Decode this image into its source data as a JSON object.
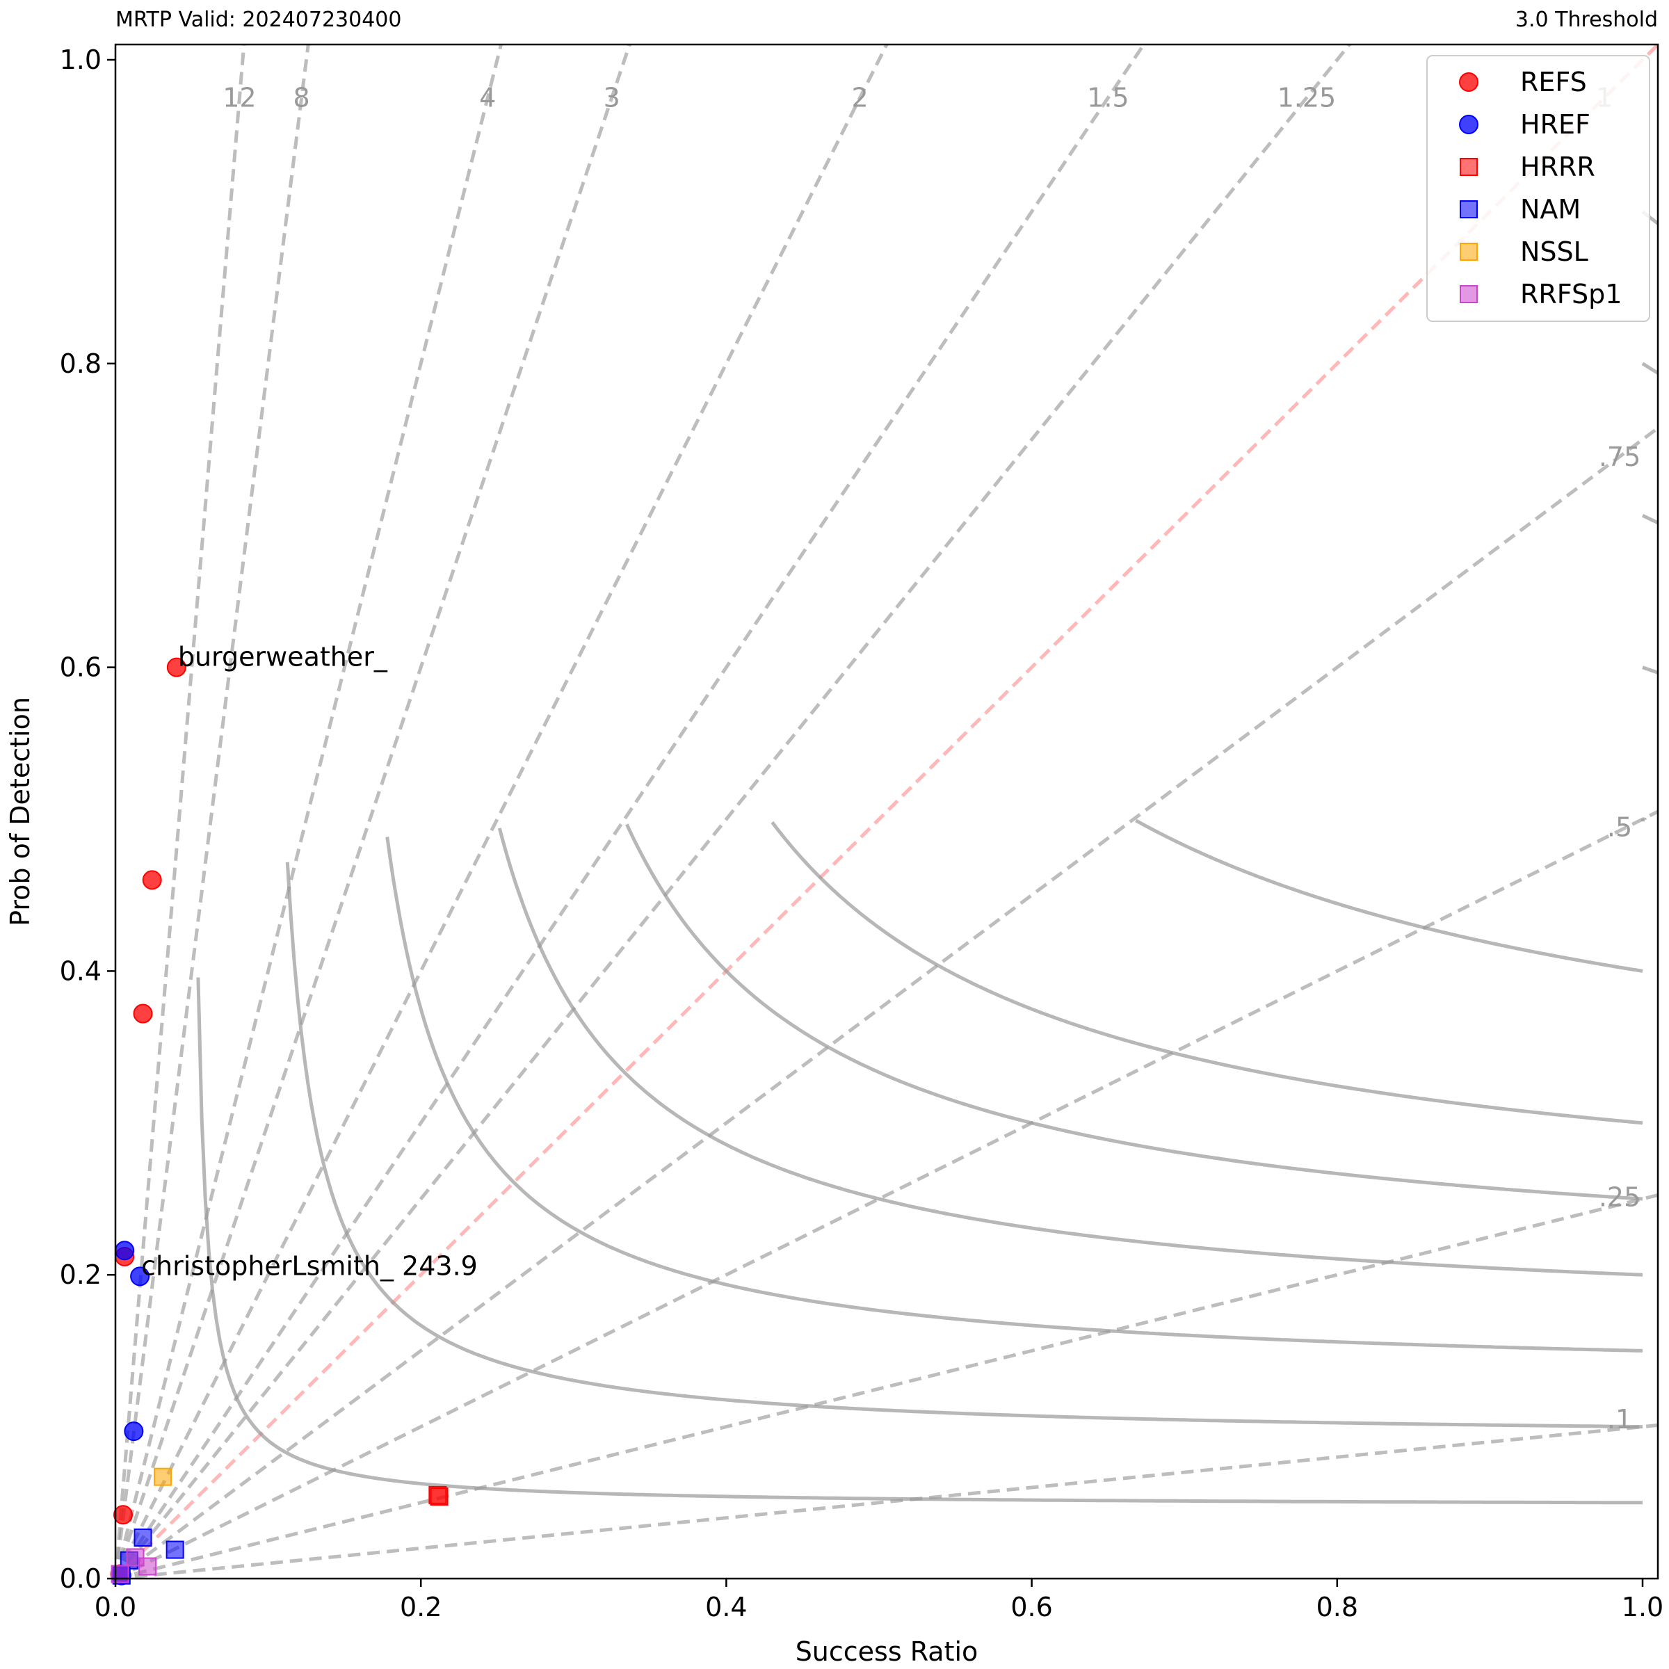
{
  "header": {
    "left_title": "MRTP Valid: 202407230400",
    "right_title": "3.0 Threshold"
  },
  "chart_data": {
    "type": "scatter",
    "xlabel": "Success Ratio",
    "ylabel": "Prob of Detection",
    "xlim": [
      0,
      1.01
    ],
    "ylim": [
      0,
      1.01
    ],
    "x_ticks": [
      "0.0",
      "0.2",
      "0.4",
      "0.6",
      "0.8",
      "1.0"
    ],
    "y_ticks": [
      "0.0",
      "0.2",
      "0.4",
      "0.6",
      "0.8",
      "1.0"
    ],
    "grid": false,
    "legend_position": "top-right",
    "csi_contours": [
      0.05,
      0.1,
      0.15,
      0.2,
      0.25,
      0.3,
      0.4,
      0.5,
      0.6,
      0.7,
      0.8,
      0.9
    ],
    "bias_lines": [
      {
        "bias": 12,
        "label": "12"
      },
      {
        "bias": 8,
        "label": "8"
      },
      {
        "bias": 4,
        "label": "4"
      },
      {
        "bias": 3,
        "label": "3"
      },
      {
        "bias": 2,
        "label": "2"
      },
      {
        "bias": 1.5,
        "label": "1.5"
      },
      {
        "bias": 1.25,
        "label": "1.25"
      },
      {
        "bias": 1,
        "label": "1"
      },
      {
        "bias": 0.75,
        "label": ".75"
      },
      {
        "bias": 0.5,
        "label": ".5"
      },
      {
        "bias": 0.25,
        "label": ".25"
      },
      {
        "bias": 0.1,
        "label": ".1"
      }
    ],
    "series": [
      {
        "name": "REFS",
        "marker": "circle",
        "color": "#ff0000",
        "points": [
          [
            0.04,
            0.6
          ],
          [
            0.024,
            0.46
          ],
          [
            0.018,
            0.372
          ],
          [
            0.006,
            0.212
          ],
          [
            0.005,
            0.042
          ],
          [
            0.003,
            0.003
          ]
        ]
      },
      {
        "name": "HREF",
        "marker": "circle",
        "color": "#0000ff",
        "points": [
          [
            0.006,
            0.216
          ],
          [
            0.016,
            0.199
          ],
          [
            0.012,
            0.097
          ],
          [
            0.004,
            0.002
          ]
        ]
      },
      {
        "name": "HRRR",
        "marker": "square",
        "color": "#ff0000",
        "points": [
          [
            0.211,
            0.055
          ],
          [
            0.212,
            0.054
          ]
        ]
      },
      {
        "name": "NAM",
        "marker": "square",
        "color": "#0000ff",
        "points": [
          [
            0.018,
            0.027
          ],
          [
            0.009,
            0.012
          ],
          [
            0.039,
            0.019
          ],
          [
            0.004,
            0.002
          ]
        ]
      },
      {
        "name": "NSSL",
        "marker": "square",
        "color": "#ffa500",
        "points": [
          [
            0.031,
            0.067
          ]
        ]
      },
      {
        "name": "RRFSp1",
        "marker": "square",
        "color": "#cc44cc",
        "points": [
          [
            0.021,
            0.008
          ],
          [
            0.013,
            0.014
          ],
          [
            0.003,
            0.003
          ]
        ]
      }
    ],
    "annotations": [
      {
        "text": "burgerweather_",
        "x": 0.04,
        "y": 0.6
      },
      {
        "text": "christopherLsmith_ 243.9",
        "x": 0.016,
        "y": 0.199
      }
    ]
  }
}
